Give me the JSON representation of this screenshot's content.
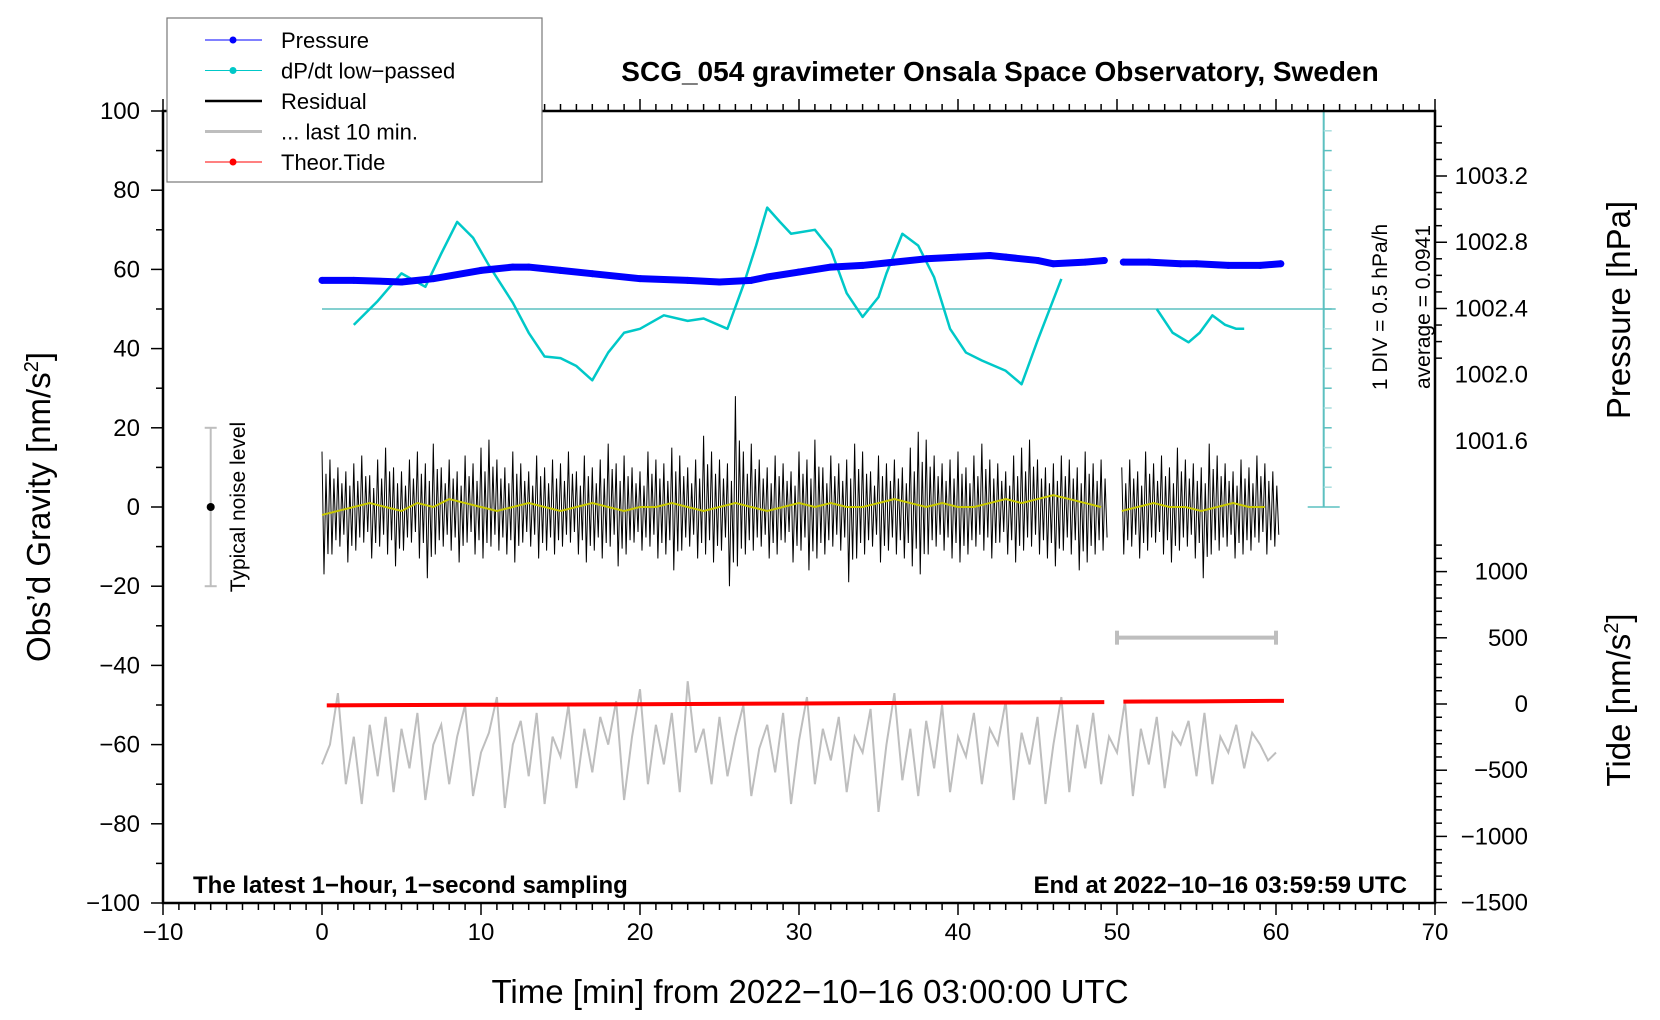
{
  "chart_data": {
    "type": "line",
    "title": "SCG_054 gravimeter Onsala Space Observatory, Sweden",
    "xlabel": "Time [min] from 2022−10−16 03:00:00 UTC",
    "ylabel_left": "Obs’d Gravity [nm/s",
    "ylabel_left_sup": "2",
    "ylabel_left_end": "]",
    "ylabel_right_pressure": "Pressure [hPa]",
    "ylabel_right_tide": "Tide [nm/s",
    "ylabel_right_tide_sup": "2",
    "ylabel_right_tide_end": "]",
    "xlim": [
      -10,
      70
    ],
    "ylim": [
      -100,
      100
    ],
    "x_ticks": [
      "−10",
      "0",
      "10",
      "20",
      "30",
      "40",
      "50",
      "60",
      "70"
    ],
    "x_tick_values": [
      -10,
      0,
      10,
      20,
      30,
      40,
      50,
      60,
      70
    ],
    "y_ticks": [
      "100",
      "80",
      "60",
      "40",
      "20",
      "0",
      "−20",
      "−40",
      "−60",
      "−80",
      "−100"
    ],
    "y_tick_values": [
      100,
      80,
      60,
      40,
      20,
      0,
      -20,
      -40,
      -60,
      -80,
      -100
    ],
    "pressure_ticks": [
      "1003.2",
      "1002.8",
      "1002.4",
      "1002.0",
      "1001.6"
    ],
    "pressure_tick_values": [
      1003.2,
      1002.8,
      1002.4,
      1002.0,
      1001.6
    ],
    "tide_ticks": [
      "1000",
      "500",
      "0",
      "−500",
      "−1000",
      "−1500"
    ],
    "tide_tick_values": [
      1000,
      500,
      0,
      -500,
      -1000,
      -1500
    ],
    "legend": {
      "placement": "top-left",
      "entries": [
        {
          "label": "Pressure",
          "color": "#0000ff"
        },
        {
          "label": "dP/dt low−passed",
          "color": "#00c8c8"
        },
        {
          "label": "Residual",
          "color": "#000000"
        },
        {
          "label": "... last 10 min.",
          "color": "#bebebe"
        },
        {
          "label": "Theor.Tide",
          "color": "#ff0000"
        }
      ]
    },
    "annotations": {
      "left_footer": "The latest 1−hour, 1−second sampling",
      "right_footer": "End at 2022−10−16 03:59:59 UTC",
      "noise_label": "Typical noise level",
      "div_label": "1 DIV = 0.5 hPa/h",
      "average_label": "average = 0.0941"
    },
    "noise_level": {
      "t": -7,
      "center": 0,
      "range": [
        -20,
        20
      ]
    },
    "dpdt_scale": {
      "hpa_per_h_per_div": 0.5,
      "gravity_units_per_div": 10,
      "zero_at_gravity": 50,
      "t": 63,
      "range": [
        0,
        100
      ]
    },
    "last10_bar": {
      "t_range": [
        50,
        60
      ],
      "gravity": -33
    },
    "series": [
      {
        "name": "Pressure",
        "unit": "hPa",
        "color": "#0000ff",
        "segments": [
          {
            "t": [
              0,
              2,
              5,
              7,
              10,
              12,
              13,
              15,
              17,
              20,
              23,
              25,
              27,
              28,
              30,
              32,
              34,
              36,
              38,
              40,
              42,
              43,
              45,
              46,
              48,
              49.2
            ],
            "values": [
              1002.57,
              1002.57,
              1002.56,
              1002.58,
              1002.63,
              1002.65,
              1002.65,
              1002.63,
              1002.61,
              1002.58,
              1002.57,
              1002.56,
              1002.57,
              1002.59,
              1002.62,
              1002.65,
              1002.66,
              1002.68,
              1002.7,
              1002.71,
              1002.72,
              1002.71,
              1002.69,
              1002.67,
              1002.68,
              1002.69
            ]
          },
          {
            "t": [
              50.4,
              52,
              54,
              55,
              57,
              59,
              60.3
            ],
            "values": [
              1002.68,
              1002.68,
              1002.67,
              1002.67,
              1002.66,
              1002.66,
              1002.67
            ]
          }
        ]
      },
      {
        "name": "dP/dt low-passed",
        "unit": "hPa/h",
        "color": "#00c8c8",
        "segments": [
          {
            "t": [
              2,
              3.5,
              5,
              6.5,
              7.5,
              8.5,
              9.5,
              10.5,
              12,
              13,
              14,
              15,
              16,
              17,
              18,
              19,
              20,
              21.5,
              23,
              24,
              25.5,
              26.5,
              27.3,
              28,
              28.8,
              29.5,
              31,
              32,
              33,
              34,
              35,
              35.5,
              36.5,
              37.5,
              38.5,
              39.5,
              40.5,
              41.5,
              43,
              44,
              45,
              46.5
            ],
            "values": [
              -0.2,
              0.1,
              0.45,
              0.28,
              0.7,
              1.1,
              0.9,
              0.55,
              0.08,
              -0.3,
              -0.6,
              -0.62,
              -0.72,
              -0.9,
              -0.55,
              -0.3,
              -0.25,
              -0.08,
              -0.15,
              -0.12,
              -0.25,
              0.3,
              0.8,
              1.28,
              1.1,
              0.95,
              1.0,
              0.75,
              0.2,
              -0.1,
              0.15,
              0.45,
              0.95,
              0.8,
              0.4,
              -0.25,
              -0.55,
              -0.65,
              -0.78,
              -0.95,
              -0.4,
              0.38
            ]
          },
          {
            "t": [
              52.5,
              53.5,
              54.5,
              55.2,
              56,
              56.8,
              57.5,
              58
            ],
            "values": [
              0.0,
              -0.3,
              -0.42,
              -0.3,
              -0.08,
              -0.2,
              -0.25,
              -0.25
            ]
          }
        ]
      },
      {
        "name": "Residual",
        "unit": "nm/s2",
        "color": "#000000",
        "segments": [
          {
            "t_start": 0,
            "dt": 0.5,
            "hi": [
              14,
              12,
              10,
              9,
              11,
              13,
              8,
              12,
              15,
              10,
              9,
              12,
              14,
              11,
              16,
              10,
              12,
              9,
              13,
              11,
              15,
              17,
              12,
              10,
              14,
              11,
              9,
              13,
              10,
              12,
              11,
              14,
              9,
              13,
              10,
              12,
              16,
              11,
              13,
              10,
              9,
              14,
              12,
              11,
              15,
              13,
              10,
              12,
              18,
              14,
              12,
              11,
              28,
              14,
              16,
              12,
              10,
              13,
              11,
              9,
              14,
              12,
              17,
              10,
              13,
              11,
              12,
              16,
              14,
              9,
              13,
              11,
              12,
              10,
              15,
              19,
              17,
              13,
              11,
              12,
              14,
              10,
              13,
              16,
              12,
              11,
              9,
              13,
              15,
              17,
              12,
              10,
              11,
              13,
              12,
              10,
              14,
              11,
              12
            ],
            "lo": [
              -17,
              -12,
              -10,
              -14,
              -11,
              -9,
              -13,
              -10,
              -12,
              -15,
              -11,
              -9,
              -13,
              -18,
              -12,
              -10,
              -11,
              -14,
              -9,
              -12,
              -13,
              -10,
              -11,
              -12,
              -14,
              -9,
              -10,
              -13,
              -11,
              -12,
              -10,
              -9,
              -12,
              -14,
              -11,
              -13,
              -10,
              -15,
              -12,
              -9,
              -11,
              -10,
              -13,
              -12,
              -16,
              -11,
              -10,
              -13,
              -12,
              -14,
              -11,
              -20,
              -15,
              -12,
              -11,
              -10,
              -13,
              -12,
              -9,
              -14,
              -11,
              -16,
              -13,
              -12,
              -10,
              -11,
              -19,
              -13,
              -12,
              -10,
              -14,
              -11,
              -12,
              -13,
              -15,
              -17,
              -12,
              -10,
              -11,
              -13,
              -14,
              -12,
              -10,
              -11,
              -13,
              -9,
              -12,
              -14,
              -11,
              -10,
              -12,
              -13,
              -15,
              -11,
              -12,
              -16,
              -14,
              -12,
              -11
            ]
          },
          {
            "t_start": 50.3,
            "dt": 0.5,
            "hi": [
              10,
              12,
              9,
              14,
              11,
              13,
              10,
              15,
              12,
              11,
              10,
              16,
              13,
              11,
              9,
              12,
              10,
              13,
              11,
              9
            ],
            "lo": [
              -12,
              -10,
              -13,
              -11,
              -9,
              -12,
              -14,
              -11,
              -10,
              -13,
              -18,
              -12,
              -11,
              -10,
              -13,
              -12,
              -11,
              -9,
              -12,
              -10
            ]
          }
        ]
      },
      {
        "name": "Residual smoothed",
        "unit": "nm/s2",
        "color": "#c8c800",
        "segments": [
          {
            "t_start": 0,
            "dt": 1,
            "values": [
              -2,
              -1,
              0,
              1,
              0,
              -1,
              1,
              0,
              2,
              1,
              0,
              -1,
              0,
              1,
              0,
              -1,
              0,
              1,
              0,
              -1,
              0,
              0,
              1,
              0,
              -1,
              0,
              1,
              0,
              -1,
              0,
              1,
              0,
              1,
              0,
              0,
              1,
              2,
              1,
              0,
              1,
              0,
              0,
              1,
              2,
              1,
              2,
              3,
              2,
              1,
              0
            ]
          },
          {
            "t_start": 50.3,
            "dt": 1,
            "values": [
              -1,
              0,
              1,
              0,
              0,
              -1,
              0,
              1,
              0,
              0
            ]
          }
        ]
      },
      {
        "name": "... last 10 min.",
        "unit": "nm/s2",
        "color": "#bebebe",
        "t_start": 0,
        "dt": 0.5,
        "values": [
          -65,
          -60,
          -47,
          -70,
          -58,
          -75,
          -55,
          -68,
          -53,
          -72,
          -56,
          -66,
          -52,
          -74,
          -60,
          -55,
          -70,
          -58,
          -50,
          -73,
          -62,
          -57,
          -48,
          -76,
          -60,
          -54,
          -68,
          -52,
          -75,
          -58,
          -63,
          -50,
          -71,
          -56,
          -67,
          -53,
          -60,
          -49,
          -74,
          -58,
          -46,
          -70,
          -55,
          -65,
          -52,
          -72,
          -44,
          -62,
          -56,
          -70,
          -53,
          -68,
          -58,
          -50,
          -73,
          -61,
          -55,
          -67,
          -52,
          -75,
          -59,
          -48,
          -70,
          -56,
          -64,
          -53,
          -72,
          -58,
          -62,
          -51,
          -77,
          -60,
          -47,
          -69,
          -56,
          -73,
          -54,
          -66,
          -50,
          -72,
          -58,
          -63,
          -52,
          -70,
          -56,
          -60,
          -49,
          -74,
          -57,
          -65,
          -53,
          -75,
          -60,
          -48,
          -72,
          -55,
          -66,
          -52,
          -70,
          -58,
          -62,
          -49,
          -73,
          -56,
          -65,
          -53,
          -71,
          -57,
          -60,
          -54,
          -68,
          -52,
          -70,
          -58,
          -62,
          -55,
          -66,
          -57,
          -60,
          -64,
          -62
        ]
      },
      {
        "name": "Theor.Tide",
        "unit": "nm/s2",
        "color": "#ff0000",
        "segments": [
          {
            "t": [
              0.3,
              10,
              20,
              30,
              40,
              49.2
            ],
            "values": [
              -10,
              -6,
              -2,
              4,
              10,
              14
            ]
          },
          {
            "t": [
              50.4,
              55,
              60.5
            ],
            "values": [
              18,
              20,
              24
            ]
          }
        ]
      }
    ]
  }
}
